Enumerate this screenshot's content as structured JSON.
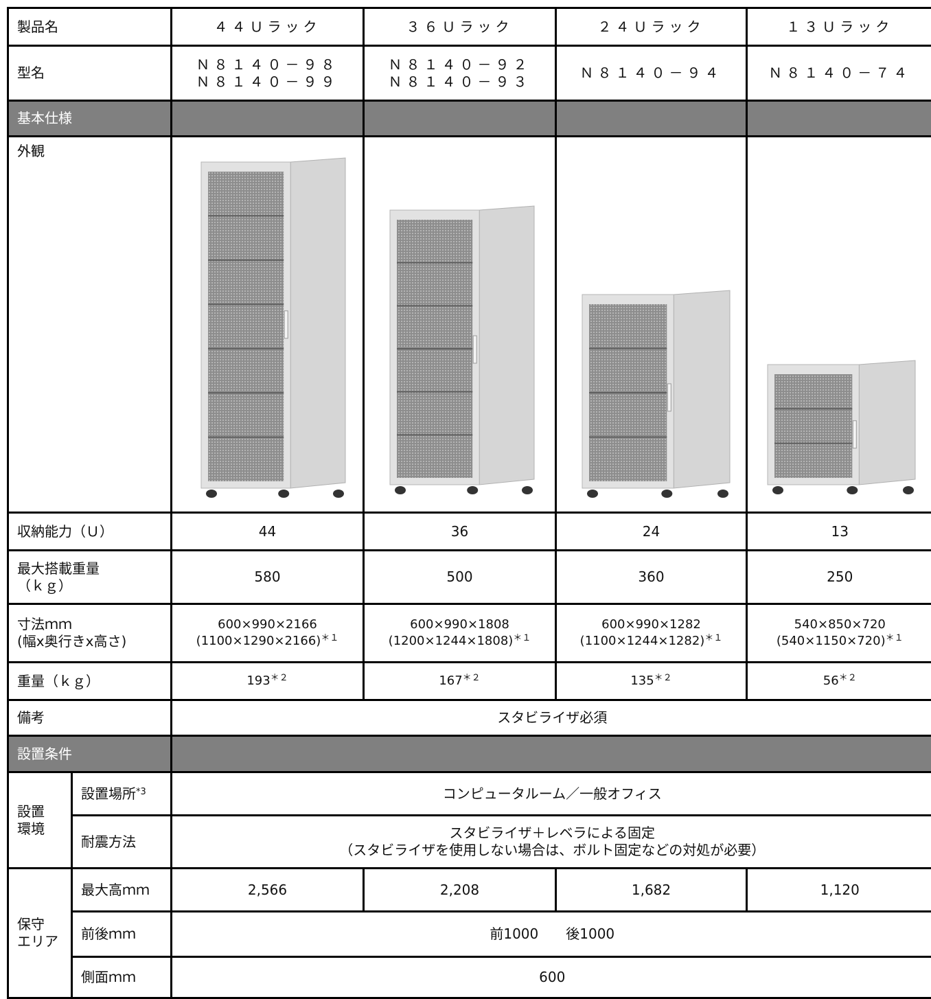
{
  "table": {
    "header": {
      "label": "製品名",
      "products": [
        "４４Ｕラック",
        "３６Ｕラック",
        "２４Ｕラック",
        "１３Ｕラック"
      ]
    },
    "model_name": {
      "label": "型名",
      "values": [
        [
          "Ｎ８１４０－９８",
          "Ｎ８１４０－９９"
        ],
        [
          "Ｎ８１４０－９２",
          "Ｎ８１４０－９３"
        ],
        [
          "Ｎ８１４０－９４"
        ],
        [
          "Ｎ８１４０－７４"
        ]
      ]
    },
    "basic_spec": "基本仕様",
    "appearance": "外観",
    "capacity": {
      "label": "収納能力（Ｕ）",
      "values": [
        "44",
        "36",
        "24",
        "13"
      ]
    },
    "max_load": {
      "label": [
        "最大搭載重量",
        "（ｋｇ）"
      ],
      "values": [
        "580",
        "500",
        "360",
        "250"
      ]
    },
    "dimensions": {
      "label": [
        "寸法ｍｍ",
        "(幅x奥行きx高さ)"
      ],
      "values": [
        {
          "size": "600×990×2166",
          "outer": "(1100×1290×2166)",
          "note": "＊１"
        },
        {
          "size": "600×990×1808",
          "outer": "(1200×1244×1808)",
          "note": "＊１"
        },
        {
          "size": "600×990×1282",
          "outer": "(1100×1244×1282)",
          "note": "＊１"
        },
        {
          "size": "540×850×720",
          "outer": "(540×1150×720)",
          "note": "＊１"
        }
      ]
    },
    "weight": {
      "label": "重量（ｋｇ）",
      "values": [
        {
          "value": "193",
          "note": "＊２"
        },
        {
          "value": "167",
          "note": "＊２"
        },
        {
          "value": "135",
          "note": "＊２"
        },
        {
          "value": "56",
          "note": "＊２"
        }
      ]
    },
    "remarks": {
      "label": "備考",
      "value": "スタビライザ必須"
    },
    "installation": "設置条件",
    "environment": {
      "label": [
        "設置",
        "環境"
      ],
      "location": {
        "label": "設置場所",
        "note": "*3",
        "value": "コンピュータルーム／一般オフィス"
      },
      "seismic": {
        "label": "耐震方法",
        "value": [
          "スタビライザ＋レベラによる固定",
          "（スタビライザを使用しない場合は、ボルト固定などの対処が必要）"
        ]
      }
    },
    "maintenance": {
      "label": [
        "保守",
        "エリア"
      ],
      "max_height": {
        "label": "最大高ｍｍ",
        "values": [
          "2,566",
          "2,208",
          "1,682",
          "1,120"
        ]
      },
      "front_back": {
        "label": "前後ｍｍ",
        "value": [
          "前1000",
          "後1000"
        ]
      },
      "side": {
        "label": "側面ｍｍ",
        "value": "600"
      }
    }
  }
}
